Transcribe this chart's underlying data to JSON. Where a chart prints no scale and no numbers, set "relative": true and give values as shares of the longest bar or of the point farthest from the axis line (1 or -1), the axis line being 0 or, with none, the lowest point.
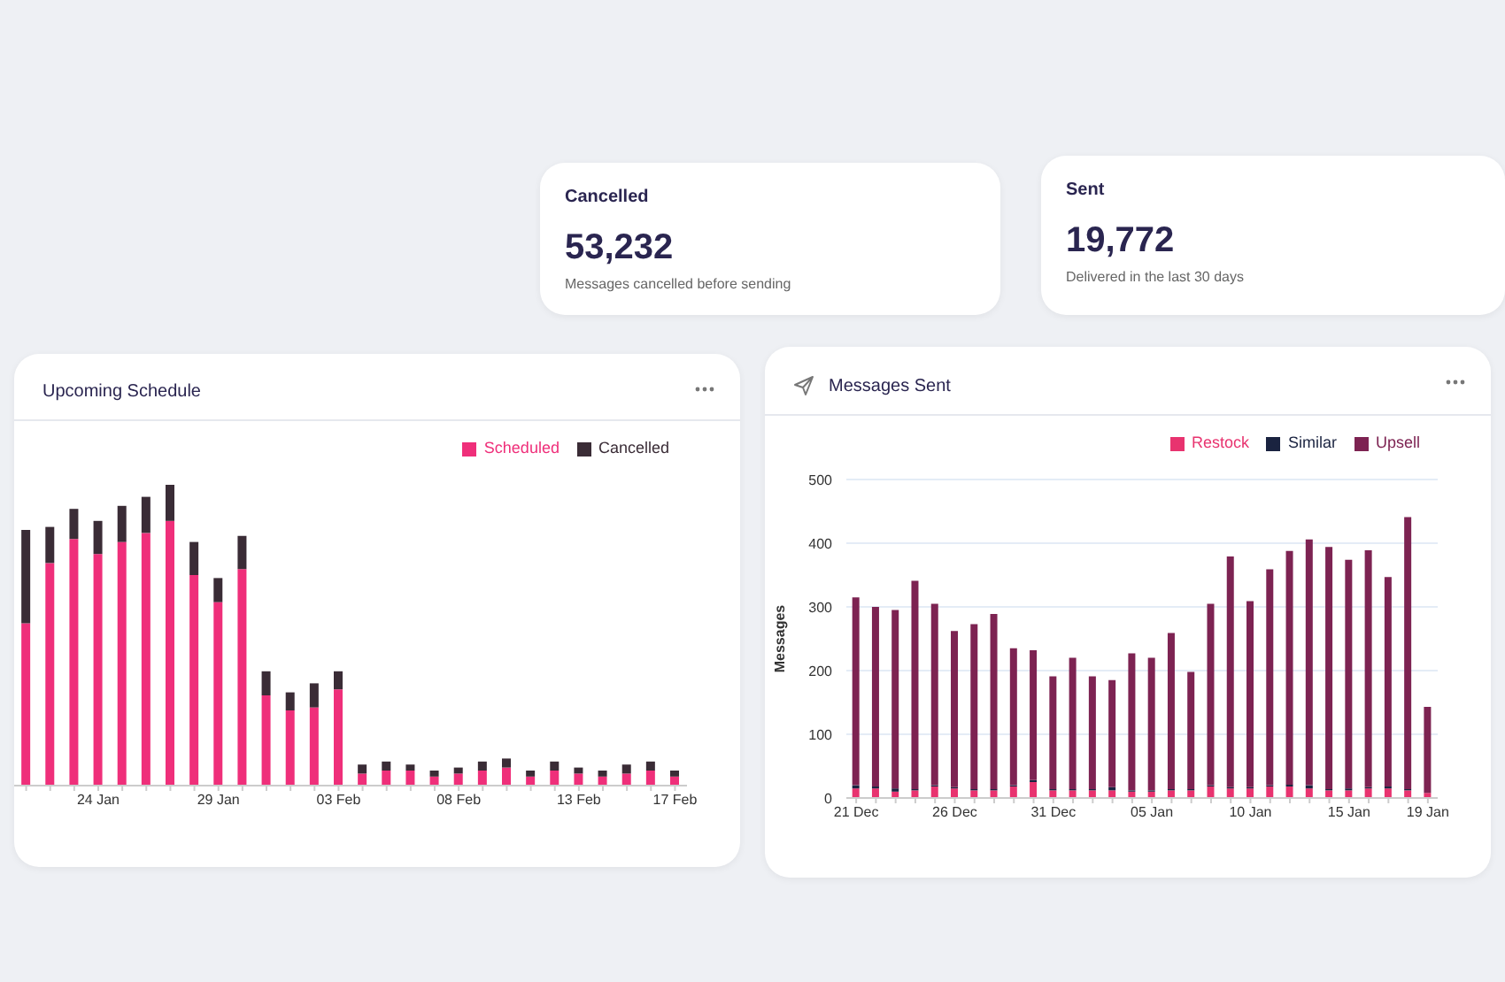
{
  "chart_data": [
    {
      "type": "other",
      "title": "Cancelled",
      "annotations": [
        "53,232",
        "Messages cancelled before sending"
      ]
    },
    {
      "type": "other",
      "title": "Sent",
      "annotations": [
        "19,772",
        "Delivered in the last 30 days"
      ]
    },
    {
      "type": "bar",
      "title": "Upcoming Schedule",
      "stacked": true,
      "relative": true,
      "legend": "top right",
      "categories": [
        null,
        null,
        null,
        "24 Jan",
        null,
        null,
        null,
        null,
        "29 Jan",
        null,
        null,
        null,
        null,
        "03 Feb",
        null,
        null,
        null,
        null,
        "08 Feb",
        null,
        null,
        null,
        null,
        "13 Feb",
        null,
        null,
        null,
        "17 Feb"
      ],
      "series": [
        {
          "name": "Scheduled",
          "color": "#ef2f7a",
          "values": [
            0.54,
            0.74,
            0.82,
            0.77,
            0.81,
            0.84,
            0.88,
            0.7,
            0.61,
            0.72,
            0.3,
            0.25,
            0.26,
            0.32,
            0.04,
            0.05,
            0.05,
            0.03,
            0.04,
            0.05,
            0.06,
            0.03,
            0.05,
            0.04,
            0.03,
            0.04,
            0.05,
            0.03
          ]
        },
        {
          "name": "Cancelled",
          "color": "#3a2c36",
          "values": [
            0.31,
            0.12,
            0.1,
            0.11,
            0.12,
            0.12,
            0.12,
            0.11,
            0.08,
            0.11,
            0.08,
            0.06,
            0.08,
            0.06,
            0.03,
            0.03,
            0.02,
            0.02,
            0.02,
            0.03,
            0.03,
            0.02,
            0.03,
            0.02,
            0.02,
            0.03,
            0.03,
            0.02
          ]
        }
      ]
    },
    {
      "type": "bar",
      "title": "Messages Sent",
      "ylabel": "Messages",
      "stacked": true,
      "legend": "top right",
      "grid": "y",
      "ylim": [
        0,
        500
      ],
      "yticks": [
        0,
        100,
        200,
        300,
        400,
        500
      ],
      "categories": [
        "21 Dec",
        null,
        null,
        null,
        null,
        "26 Dec",
        null,
        null,
        null,
        null,
        "31 Dec",
        null,
        null,
        null,
        null,
        "05 Jan",
        null,
        null,
        null,
        null,
        "10 Jan",
        null,
        null,
        null,
        null,
        "15 Jan",
        null,
        null,
        null,
        "19 Jan"
      ],
      "series": [
        {
          "name": "Restock",
          "color": "#e8336f",
          "values": [
            15,
            15,
            10,
            12,
            18,
            15,
            12,
            12,
            18,
            25,
            12,
            12,
            12,
            12,
            10,
            10,
            12,
            12,
            18,
            15,
            15,
            18,
            18,
            15,
            12,
            12,
            15,
            15,
            12,
            8
          ]
        },
        {
          "name": "Similar",
          "color": "#1a2340",
          "values": [
            5,
            3,
            5,
            2,
            2,
            2,
            2,
            2,
            2,
            3,
            2,
            2,
            2,
            5,
            2,
            2,
            2,
            2,
            2,
            2,
            2,
            2,
            3,
            5,
            2,
            3,
            2,
            3,
            2,
            null
          ]
        },
        {
          "name": "Upsell",
          "color": "#7d2352",
          "values": [
            295,
            282,
            280,
            327,
            285,
            245,
            259,
            275,
            215,
            204,
            177,
            206,
            177,
            168,
            215,
            208,
            245,
            184,
            285,
            362,
            292,
            339,
            367,
            386,
            380,
            359,
            372,
            329,
            427,
            135
          ]
        }
      ]
    }
  ]
}
